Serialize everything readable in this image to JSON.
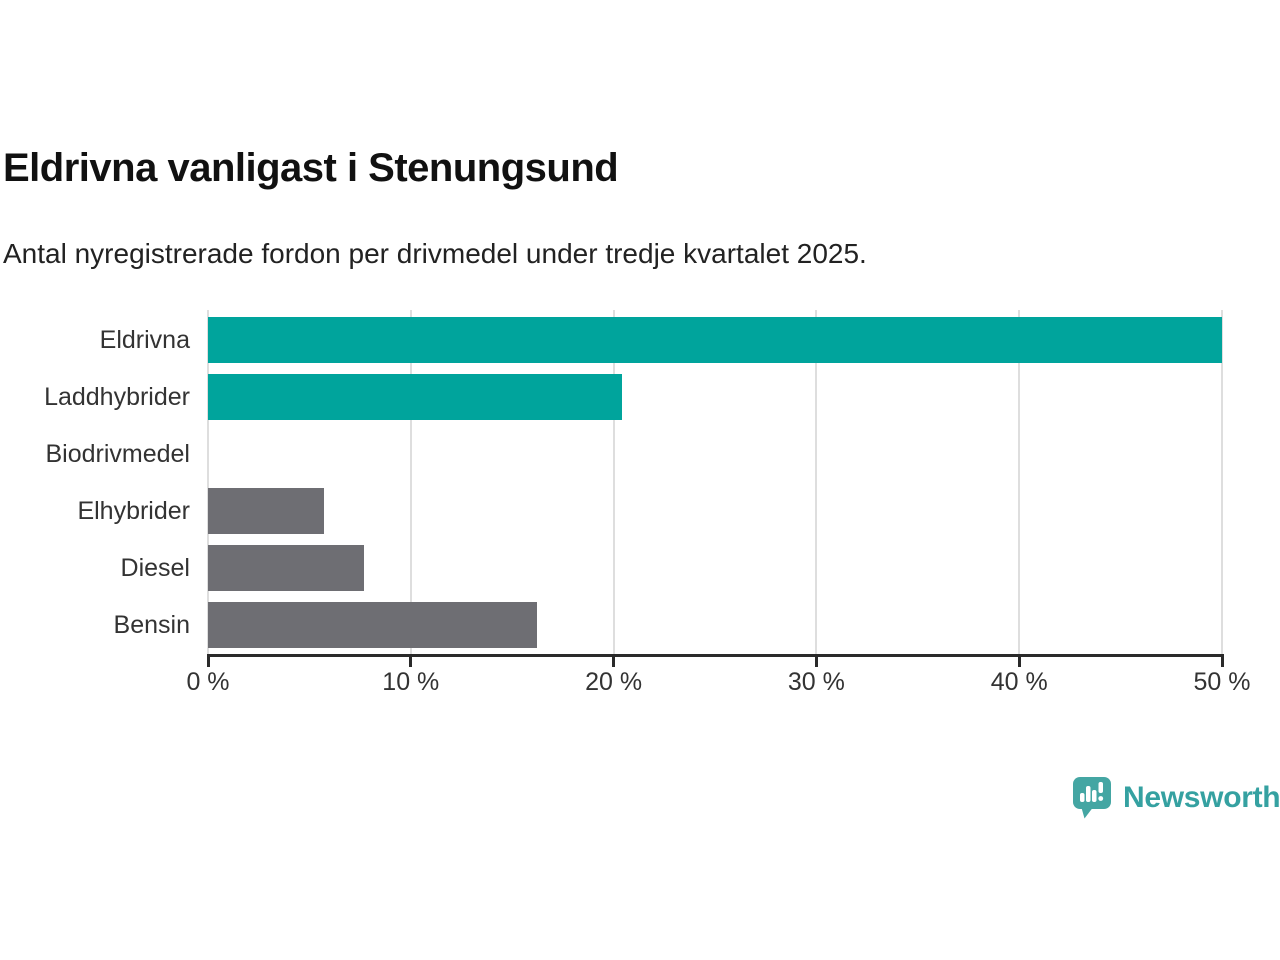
{
  "title": "Eldrivna vanligast i Stenungsund",
  "subtitle": "Antal nyregistrerade fordon per drivmedel under tredje kvartalet 2025.",
  "chart_data": {
    "type": "bar",
    "orientation": "horizontal",
    "title": "Eldrivna vanligast i Stenungsund",
    "subtitle": "Antal nyregistrerade fordon per drivmedel under tredje kvartalet 2025.",
    "categories": [
      "Eldrivna",
      "Laddhybrider",
      "Biodrivmedel",
      "Elhybrider",
      "Diesel",
      "Bensin"
    ],
    "values": [
      50.0,
      20.4,
      0,
      5.7,
      7.7,
      16.2
    ],
    "unit": "%",
    "xlim": [
      0,
      50
    ],
    "x_ticks": [
      0,
      10,
      20,
      30,
      40,
      50
    ],
    "x_tick_labels": [
      "0 %",
      "10 %",
      "20 %",
      "30 %",
      "40 %",
      "50 %"
    ],
    "bar_colors": [
      "#00a49c",
      "#00a49c",
      "#6e6e73",
      "#6e6e73",
      "#6e6e73",
      "#6e6e73"
    ],
    "grid": "vertical-gridlines",
    "legend": "none"
  },
  "colors": {
    "accent_teal": "#00a49c",
    "bar_gray": "#6e6e73",
    "gridline": "#dedede",
    "axis": "#2a2a2a",
    "text_dark": "#111111",
    "text_body": "#333333",
    "brand_teal": "#3aa3a1"
  },
  "branding": {
    "logo_text": "Newsworthy",
    "logo_icon": "bar-chart-speech-bubble-icon"
  }
}
